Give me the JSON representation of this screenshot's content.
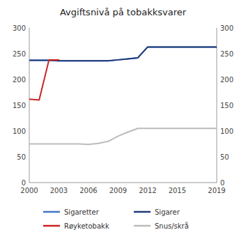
{
  "chart_data": {
    "type": "line",
    "title": "Avgiftsnivå på tobakksvarer",
    "x": [
      2000,
      2001,
      2002,
      2003,
      2004,
      2005,
      2006,
      2007,
      2008,
      2009,
      2010,
      2011,
      2012,
      2013,
      2014,
      2015,
      2016,
      2017,
      2018,
      2019
    ],
    "series": [
      {
        "name": "Sigaretter",
        "color": "#4472c4",
        "values": [
          237,
          237,
          237,
          236,
          236,
          236,
          236,
          236,
          236,
          238,
          240,
          242,
          263,
          263,
          263,
          263,
          263,
          263,
          263,
          263
        ]
      },
      {
        "name": "Sigarer",
        "color": "#1f3a7a",
        "values": [
          237,
          237,
          237,
          236,
          236,
          236,
          236,
          236,
          236,
          238,
          240,
          242,
          263,
          263,
          263,
          263,
          263,
          263,
          263,
          263
        ]
      },
      {
        "name": "Røyketobakk",
        "color": "#cc2222",
        "values": [
          162,
          160,
          238,
          238,
          null,
          null,
          null,
          null,
          null,
          null,
          null,
          null,
          null,
          null,
          null,
          null,
          null,
          null,
          null,
          null
        ]
      },
      {
        "name": "Snus/skrå",
        "color": "#bbbbbb",
        "values": [
          75,
          75,
          75,
          75,
          75,
          75,
          74,
          76,
          80,
          90,
          98,
          105,
          105,
          105,
          105,
          105,
          105,
          105,
          105,
          105
        ]
      }
    ],
    "xlim": [
      2000,
      2019
    ],
    "xticks": [
      2000,
      2003,
      2006,
      2009,
      2012,
      2015,
      2019
    ],
    "ylim": [
      0,
      300
    ],
    "yticks": [
      0,
      50,
      100,
      150,
      200,
      250,
      300
    ],
    "y2lim": [
      0,
      300
    ],
    "y2ticks": [
      0,
      50,
      100,
      150,
      200,
      250,
      300
    ],
    "grid": false,
    "legend": "bottom"
  }
}
